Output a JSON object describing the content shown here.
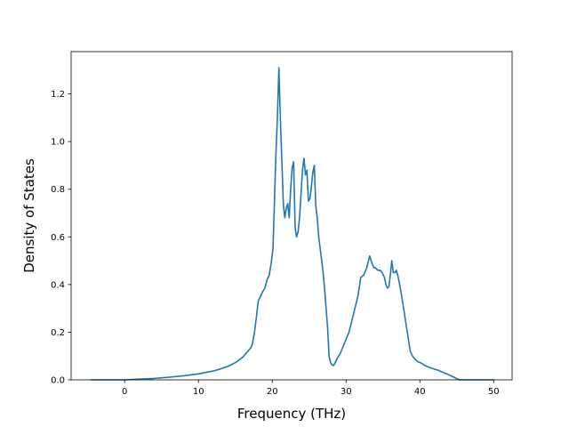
{
  "chart_data": {
    "type": "line",
    "title": "",
    "xlabel": "Frequency (THz)",
    "ylabel": "Density of States",
    "xlim": [
      -7.25,
      52.5
    ],
    "ylim": [
      0.0,
      1.3776
    ],
    "xticks": [
      0,
      10,
      20,
      30,
      40,
      50
    ],
    "xtick_labels": [
      "0",
      "10",
      "20",
      "30",
      "40",
      "50"
    ],
    "yticks": [
      0.0,
      0.2,
      0.4,
      0.6,
      0.8,
      1.0,
      1.2
    ],
    "ytick_labels": [
      "0.0",
      "0.2",
      "0.4",
      "0.6",
      "0.8",
      "1.0",
      "1.2"
    ],
    "grid": false,
    "colors": {
      "line": "#1f77b4",
      "axes": "#000000",
      "background": "#ffffff"
    },
    "series": [
      {
        "x": [
          -4.6,
          -2.0,
          0.0,
          2.0,
          4.0,
          6.0,
          8.0,
          10.0,
          12.0,
          13.0,
          14.0,
          15.0,
          16.0,
          16.7,
          17.1,
          17.3,
          17.6,
          17.8,
          18.1,
          18.4,
          18.7,
          19.0,
          19.3,
          19.6,
          19.9,
          20.1,
          20.3,
          20.5,
          20.7,
          20.9,
          21.1,
          21.3,
          21.5,
          21.7,
          21.9,
          22.1,
          22.3,
          22.5,
          22.7,
          22.9,
          23.1,
          23.3,
          23.5,
          23.7,
          23.9,
          24.1,
          24.3,
          24.5,
          24.7,
          24.9,
          25.1,
          25.3,
          25.5,
          25.7,
          25.9,
          26.1,
          26.3,
          26.5,
          26.7,
          26.9,
          27.1,
          27.3,
          27.5,
          27.7,
          27.9,
          28.1,
          28.3,
          28.5,
          28.8,
          29.2,
          29.6,
          30.0,
          30.4,
          30.8,
          31.2,
          31.6,
          32.0,
          32.4,
          32.8,
          33.2,
          33.5,
          33.8,
          34.0,
          34.3,
          34.6,
          34.9,
          35.2,
          35.4,
          35.6,
          35.8,
          36.0,
          36.2,
          36.4,
          36.6,
          36.8,
          37.0,
          37.2,
          37.5,
          37.8,
          38.1,
          38.4,
          38.7,
          39.0,
          39.4,
          39.8,
          40.2,
          40.6,
          41.0,
          41.5,
          42.0,
          42.5,
          43.0,
          43.5,
          44.0,
          44.5,
          45.0,
          45.4,
          45.6,
          46.0,
          47.0,
          48.0,
          49.0,
          50.0
        ],
        "y": [
          0.0,
          0.0,
          0.0,
          0.003,
          0.006,
          0.011,
          0.017,
          0.025,
          0.037,
          0.046,
          0.057,
          0.072,
          0.095,
          0.12,
          0.135,
          0.15,
          0.2,
          0.25,
          0.33,
          0.35,
          0.37,
          0.385,
          0.42,
          0.44,
          0.5,
          0.55,
          0.75,
          0.95,
          1.1,
          1.31,
          1.1,
          0.92,
          0.74,
          0.68,
          0.72,
          0.74,
          0.68,
          0.8,
          0.89,
          0.915,
          0.64,
          0.6,
          0.62,
          0.68,
          0.78,
          0.88,
          0.93,
          0.86,
          0.88,
          0.75,
          0.76,
          0.81,
          0.87,
          0.9,
          0.73,
          0.68,
          0.6,
          0.55,
          0.5,
          0.45,
          0.38,
          0.3,
          0.22,
          0.1,
          0.072,
          0.063,
          0.06,
          0.07,
          0.09,
          0.11,
          0.14,
          0.17,
          0.2,
          0.25,
          0.3,
          0.35,
          0.43,
          0.44,
          0.47,
          0.52,
          0.49,
          0.47,
          0.47,
          0.46,
          0.46,
          0.45,
          0.43,
          0.4,
          0.385,
          0.39,
          0.44,
          0.5,
          0.45,
          0.45,
          0.46,
          0.44,
          0.41,
          0.36,
          0.3,
          0.24,
          0.18,
          0.12,
          0.1,
          0.085,
          0.075,
          0.07,
          0.062,
          0.056,
          0.05,
          0.045,
          0.04,
          0.033,
          0.027,
          0.02,
          0.013,
          0.005,
          0.0,
          0.0,
          0.0,
          0.0,
          0.0,
          0.0,
          0.0
        ]
      }
    ]
  }
}
